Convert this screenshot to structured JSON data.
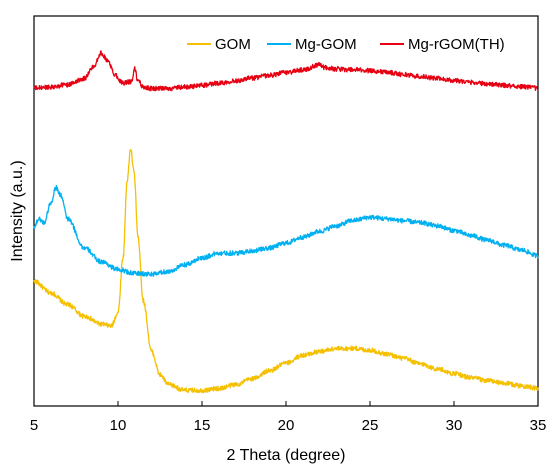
{
  "chart_data": {
    "type": "line",
    "title": "",
    "xlabel": "2 Theta (degree)",
    "ylabel": "Intensity (a.u.)",
    "xlim": [
      5,
      35
    ],
    "xticks": [
      5,
      10,
      15,
      20,
      25,
      30,
      35
    ],
    "yticks_shown": false,
    "grid": false,
    "legend_position": "top-right",
    "series": [
      {
        "name": "GOM",
        "color": "#F5C000",
        "points": [
          [
            5,
            0.32
          ],
          [
            6,
            0.29
          ],
          [
            7,
            0.26
          ],
          [
            8,
            0.23
          ],
          [
            9,
            0.21
          ],
          [
            9.6,
            0.205
          ],
          [
            10.0,
            0.24
          ],
          [
            10.3,
            0.38
          ],
          [
            10.55,
            0.58
          ],
          [
            10.75,
            0.66
          ],
          [
            10.95,
            0.6
          ],
          [
            11.2,
            0.43
          ],
          [
            11.5,
            0.27
          ],
          [
            12.0,
            0.14
          ],
          [
            12.5,
            0.08
          ],
          [
            13.0,
            0.055
          ],
          [
            14,
            0.04
          ],
          [
            15,
            0.04
          ],
          [
            16,
            0.045
          ],
          [
            17,
            0.055
          ],
          [
            18,
            0.07
          ],
          [
            19,
            0.09
          ],
          [
            20,
            0.11
          ],
          [
            21,
            0.13
          ],
          [
            22,
            0.14
          ],
          [
            23,
            0.147
          ],
          [
            24,
            0.148
          ],
          [
            25,
            0.143
          ],
          [
            26,
            0.133
          ],
          [
            27,
            0.122
          ],
          [
            28,
            0.108
          ],
          [
            29,
            0.095
          ],
          [
            30,
            0.083
          ],
          [
            31,
            0.073
          ],
          [
            32,
            0.065
          ],
          [
            33,
            0.058
          ],
          [
            34,
            0.052
          ],
          [
            35,
            0.045
          ]
        ]
      },
      {
        "name": "Mg-GOM",
        "color": "#00B0F0",
        "points": [
          [
            5,
            0.46
          ],
          [
            5.3,
            0.48
          ],
          [
            5.6,
            0.47
          ],
          [
            6.0,
            0.52
          ],
          [
            6.3,
            0.56
          ],
          [
            6.6,
            0.54
          ],
          [
            7.0,
            0.48
          ],
          [
            8,
            0.405
          ],
          [
            9,
            0.37
          ],
          [
            10,
            0.35
          ],
          [
            11,
            0.34
          ],
          [
            12,
            0.338
          ],
          [
            13,
            0.345
          ],
          [
            14,
            0.362
          ],
          [
            15,
            0.38
          ],
          [
            16,
            0.392
          ],
          [
            17,
            0.392
          ],
          [
            18,
            0.398
          ],
          [
            19,
            0.405
          ],
          [
            20,
            0.418
          ],
          [
            21,
            0.433
          ],
          [
            22,
            0.448
          ],
          [
            23,
            0.462
          ],
          [
            24,
            0.476
          ],
          [
            25,
            0.484
          ],
          [
            26,
            0.48
          ],
          [
            27,
            0.475
          ],
          [
            28,
            0.47
          ],
          [
            29,
            0.462
          ],
          [
            30,
            0.45
          ],
          [
            31,
            0.437
          ],
          [
            32,
            0.425
          ],
          [
            33,
            0.412
          ],
          [
            34,
            0.4
          ],
          [
            35,
            0.385
          ]
        ]
      },
      {
        "name": "Mg-rGOM(TH)",
        "color": "#E60012",
        "points": [
          [
            5,
            0.815
          ],
          [
            6,
            0.818
          ],
          [
            7,
            0.824
          ],
          [
            8,
            0.84
          ],
          [
            8.5,
            0.868
          ],
          [
            9.0,
            0.905
          ],
          [
            9.4,
            0.885
          ],
          [
            9.8,
            0.85
          ],
          [
            10.3,
            0.828
          ],
          [
            10.8,
            0.832
          ],
          [
            11.0,
            0.865
          ],
          [
            11.15,
            0.838
          ],
          [
            11.5,
            0.818
          ],
          [
            12,
            0.814
          ],
          [
            13,
            0.814
          ],
          [
            14,
            0.818
          ],
          [
            15,
            0.822
          ],
          [
            16,
            0.828
          ],
          [
            17,
            0.834
          ],
          [
            18,
            0.841
          ],
          [
            19,
            0.848
          ],
          [
            20,
            0.855
          ],
          [
            21,
            0.862
          ],
          [
            22,
            0.875
          ],
          [
            22.3,
            0.868
          ],
          [
            23,
            0.864
          ],
          [
            24,
            0.862
          ],
          [
            25,
            0.86
          ],
          [
            26,
            0.856
          ],
          [
            27,
            0.85
          ],
          [
            28,
            0.845
          ],
          [
            29,
            0.84
          ],
          [
            30,
            0.835
          ],
          [
            31,
            0.83
          ],
          [
            32,
            0.826
          ],
          [
            33,
            0.822
          ],
          [
            34,
            0.819
          ],
          [
            35,
            0.815
          ]
        ]
      }
    ]
  }
}
